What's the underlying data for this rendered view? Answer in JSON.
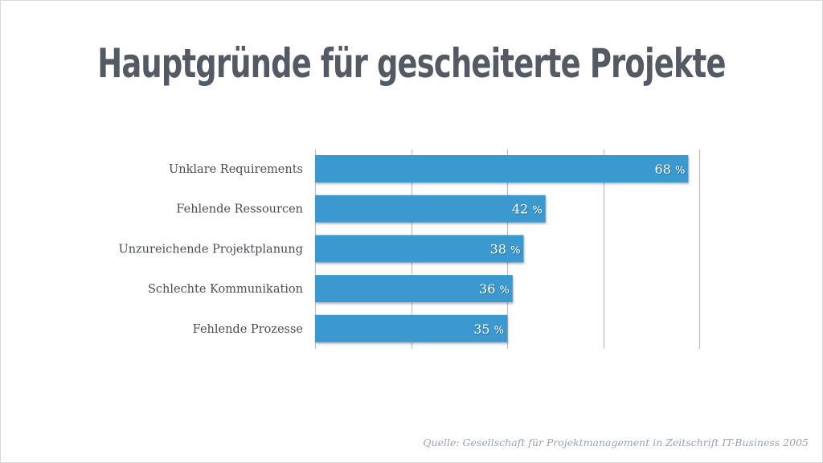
{
  "title": "Hauptgründe für gescheiterte Projekte",
  "source": "Quelle: Gesellschaft für Projektmanagement in Zeitschrift IT-Business 2005",
  "colors": {
    "bar": "#3a99cf",
    "title": "#535a63",
    "label": "#4a4f55",
    "grid": "#bfbfbf",
    "source": "#9aa2ab"
  },
  "chart_data": {
    "type": "bar",
    "orientation": "horizontal",
    "title": "Hauptgründe für gescheiterte Projekte",
    "categories": [
      "Unklare Requirements",
      "Fehlende Ressourcen",
      "Unzureichende Projektplanung",
      "Schlechte Kommunikation",
      "Fehlende Prozesse"
    ],
    "values": [
      68,
      42,
      38,
      36,
      35
    ],
    "value_labels": [
      "68 %",
      "42 %",
      "38 %",
      "36 %",
      "35 %"
    ],
    "unit": "%",
    "xlabel": "",
    "ylabel": "",
    "xlim": [
      0,
      70
    ],
    "gridlines": [
      0,
      17.5,
      35,
      52.5,
      70
    ],
    "grid": true,
    "legend": "none"
  }
}
